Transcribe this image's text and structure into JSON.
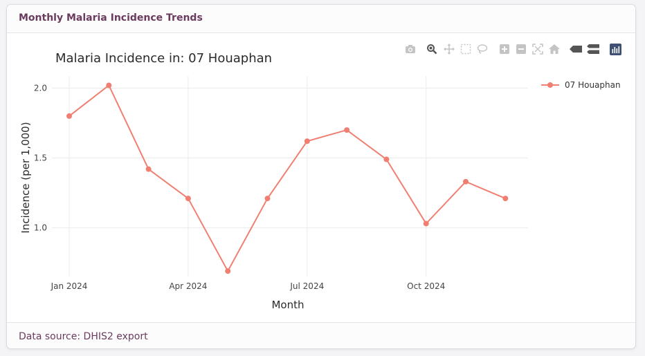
{
  "card": {
    "title": "Monthly Malaria Incidence Trends",
    "footer": "Data source: DHIS2 export"
  },
  "modebar": {
    "icons": [
      "camera-icon",
      "zoom-icon",
      "pan-icon",
      "box-select-icon",
      "lasso-icon",
      "zoom-in-icon",
      "zoom-out-icon",
      "autoscale-icon",
      "reset-axes-icon",
      "hover-closest-icon",
      "hover-compare-icon",
      "plotly-logo-icon"
    ]
  },
  "colors": {
    "line": "#f07f72",
    "grid": "#ebebeb",
    "title": "#6a3b5e"
  },
  "chart_data": {
    "type": "line",
    "title": "Malaria Incidence in: 07 Houaphan",
    "xlabel": "Month",
    "ylabel": "Incidence (per 1,000)",
    "x": [
      "2024-01",
      "2024-02",
      "2024-03",
      "2024-04",
      "2024-05",
      "2024-06",
      "2024-07",
      "2024-08",
      "2024-09",
      "2024-10",
      "2024-11",
      "2024-12"
    ],
    "xticks": [
      "Jan 2024",
      "Apr 2024",
      "Jul 2024",
      "Oct 2024"
    ],
    "yticks": [
      "1.0",
      "1.5",
      "2.0"
    ],
    "ylim": [
      0.63,
      2.13
    ],
    "grid": true,
    "legend_position": "top-right",
    "series": [
      {
        "name": "07 Houaphan",
        "values": [
          1.8,
          2.02,
          1.42,
          1.21,
          0.69,
          1.21,
          1.62,
          1.7,
          1.49,
          1.03,
          1.33,
          1.21
        ]
      }
    ]
  }
}
